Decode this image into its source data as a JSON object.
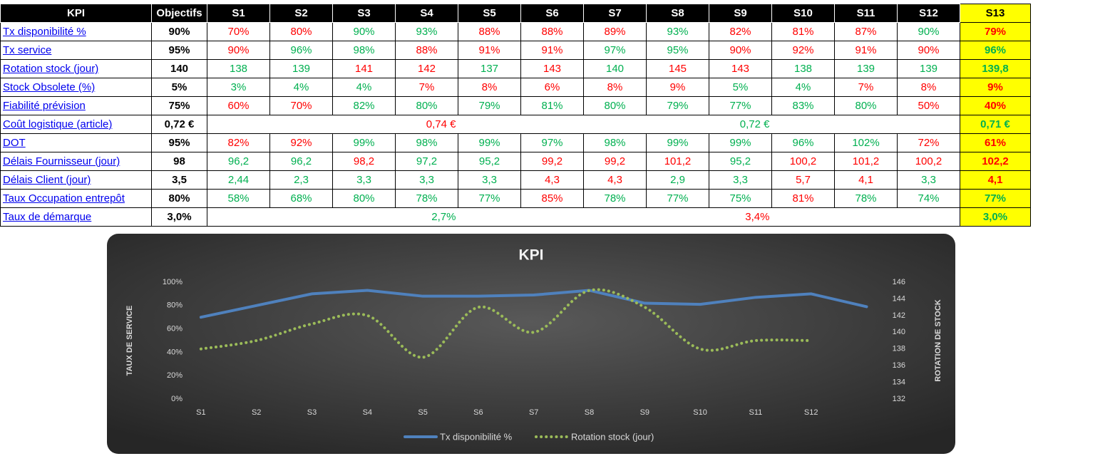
{
  "table": {
    "header": [
      "KPI",
      "Objectifs",
      "S1",
      "S2",
      "S3",
      "S4",
      "S5",
      "S6",
      "S7",
      "S8",
      "S9",
      "S10",
      "S11",
      "S12",
      "S13"
    ],
    "rows": [
      {
        "kpi": "Tx disponibilité %",
        "target": "90%",
        "cells": [
          "70%",
          "80%",
          "90%",
          "93%",
          "88%",
          "88%",
          "89%",
          "93%",
          "82%",
          "81%",
          "87%",
          "90%",
          "79%"
        ],
        "colors": [
          "#ff0000",
          "#ff0000",
          "#00b050",
          "#00b050",
          "#ff0000",
          "#ff0000",
          "#ff0000",
          "#00b050",
          "#ff0000",
          "#ff0000",
          "#ff0000",
          "#00b050",
          "#ff0000"
        ]
      },
      {
        "kpi": "Tx service",
        "target": "95%",
        "cells": [
          "90%",
          "96%",
          "98%",
          "88%",
          "91%",
          "91%",
          "97%",
          "95%",
          "90%",
          "92%",
          "91%",
          "90%",
          "96%"
        ],
        "colors": [
          "#ff0000",
          "#00b050",
          "#00b050",
          "#ff0000",
          "#ff0000",
          "#ff0000",
          "#00b050",
          "#00b050",
          "#ff0000",
          "#ff0000",
          "#ff0000",
          "#ff0000",
          "#00b050"
        ]
      },
      {
        "kpi": "Rotation stock (jour)",
        "target": "140",
        "cells": [
          "138",
          "139",
          "141",
          "142",
          "137",
          "143",
          "140",
          "145",
          "143",
          "138",
          "139",
          "139",
          "139,8"
        ],
        "colors": [
          "#00b050",
          "#00b050",
          "#ff0000",
          "#ff0000",
          "#00b050",
          "#ff0000",
          "#00b050",
          "#ff0000",
          "#ff0000",
          "#00b050",
          "#00b050",
          "#00b050",
          "#00b050"
        ]
      },
      {
        "kpi": "Stock Obsolete (%)",
        "target": "5%",
        "cells": [
          "3%",
          "4%",
          "4%",
          "7%",
          "8%",
          "6%",
          "8%",
          "9%",
          "5%",
          "4%",
          "7%",
          "8%",
          "9%"
        ],
        "colors": [
          "#00b050",
          "#00b050",
          "#00b050",
          "#ff0000",
          "#ff0000",
          "#ff0000",
          "#ff0000",
          "#ff0000",
          "#00b050",
          "#00b050",
          "#ff0000",
          "#ff0000",
          "#ff0000"
        ]
      },
      {
        "kpi": "Fiabilité prévision",
        "target": "75%",
        "cells": [
          "60%",
          "70%",
          "82%",
          "80%",
          "79%",
          "81%",
          "80%",
          "79%",
          "77%",
          "83%",
          "80%",
          "50%",
          "40%"
        ],
        "colors": [
          "#ff0000",
          "#ff0000",
          "#00b050",
          "#00b050",
          "#00b050",
          "#00b050",
          "#00b050",
          "#00b050",
          "#00b050",
          "#00b050",
          "#00b050",
          "#ff0000",
          "#ff0000"
        ]
      },
      {
        "kpi": "Coût logistique (article)",
        "target": "0,72 €",
        "cells": [
          "0,74 €",
          "0,72 €",
          "0,71 €"
        ],
        "colors": [
          "#ff0000",
          "#00b050",
          "#00b050"
        ]
      },
      {
        "kpi": "DOT",
        "target": "95%",
        "cells": [
          "82%",
          "92%",
          "99%",
          "98%",
          "99%",
          "97%",
          "98%",
          "99%",
          "99%",
          "96%",
          "102%",
          "72%",
          "61%"
        ],
        "colors": [
          "#ff0000",
          "#ff0000",
          "#00b050",
          "#00b050",
          "#00b050",
          "#00b050",
          "#00b050",
          "#00b050",
          "#00b050",
          "#00b050",
          "#00b050",
          "#ff0000",
          "#ff0000"
        ]
      },
      {
        "kpi": "Délais Fournisseur (jour)",
        "target": "98",
        "cells": [
          "96,2",
          "96,2",
          "98,2",
          "97,2",
          "95,2",
          "99,2",
          "99,2",
          "101,2",
          "95,2",
          "100,2",
          "101,2",
          "100,2",
          "102,2"
        ],
        "colors": [
          "#00b050",
          "#00b050",
          "#ff0000",
          "#00b050",
          "#00b050",
          "#ff0000",
          "#ff0000",
          "#ff0000",
          "#00b050",
          "#ff0000",
          "#ff0000",
          "#ff0000",
          "#ff0000"
        ]
      },
      {
        "kpi": "Délais Client (jour)",
        "target": "3,5",
        "cells": [
          "2,44",
          "2,3",
          "3,3",
          "3,3",
          "3,3",
          "4,3",
          "4,3",
          "2,9",
          "3,3",
          "5,7",
          "4,1",
          "3,3",
          "4,1"
        ],
        "colors": [
          "#00b050",
          "#00b050",
          "#00b050",
          "#00b050",
          "#00b050",
          "#ff0000",
          "#ff0000",
          "#00b050",
          "#00b050",
          "#ff0000",
          "#ff0000",
          "#00b050",
          "#ff0000"
        ]
      },
      {
        "kpi": "Taux Occupation entrepôt",
        "target": "80%",
        "cells": [
          "58%",
          "68%",
          "80%",
          "78%",
          "77%",
          "85%",
          "78%",
          "77%",
          "75%",
          "81%",
          "78%",
          "74%",
          "77%"
        ],
        "colors": [
          "#00b050",
          "#00b050",
          "#00b050",
          "#00b050",
          "#00b050",
          "#ff0000",
          "#00b050",
          "#00b050",
          "#00b050",
          "#ff0000",
          "#00b050",
          "#00b050",
          "#00b050"
        ]
      },
      {
        "kpi": "Taux de démarque",
        "target": "3,0%",
        "cells": [
          "2,7%",
          "3,4%",
          "3,0%"
        ],
        "colors": [
          "#00b050",
          "#ff0000",
          "#00b050"
        ]
      }
    ]
  },
  "chart_data": {
    "type": "line",
    "title": "KPI",
    "y_label": "TAUX DE SERVICE",
    "y2_label": "ROTATION DE STOCK",
    "categories": [
      "S1",
      "S2",
      "S3",
      "S4",
      "S5",
      "S6",
      "S7",
      "S8",
      "S9",
      "S10",
      "S11",
      "S12",
      null
    ],
    "ylim": [
      0,
      100
    ],
    "yticks": [
      {
        "value": 0,
        "label": "0%"
      },
      {
        "value": 20,
        "label": "20%"
      },
      {
        "value": 40,
        "label": "40%"
      },
      {
        "value": 60,
        "label": "60%"
      },
      {
        "value": 80,
        "label": "80%"
      },
      {
        "value": 100,
        "label": "100%"
      }
    ],
    "y2lim": [
      132,
      146
    ],
    "y2ticks": [
      132,
      134,
      136,
      138,
      140,
      142,
      144,
      146
    ],
    "series": [
      {
        "name": "Tx disponibilité %",
        "color": "#4f81bd",
        "values": [
          70,
          80,
          90,
          93,
          88,
          88,
          89,
          93,
          82,
          81,
          87,
          90,
          79
        ]
      },
      {
        "name": "Rotation stock (jour)",
        "color": "#9bbb59",
        "axis": "y2",
        "values": [
          138,
          139,
          141,
          142,
          137,
          143,
          140,
          145,
          143,
          138,
          139,
          139,
          null
        ]
      }
    ]
  }
}
